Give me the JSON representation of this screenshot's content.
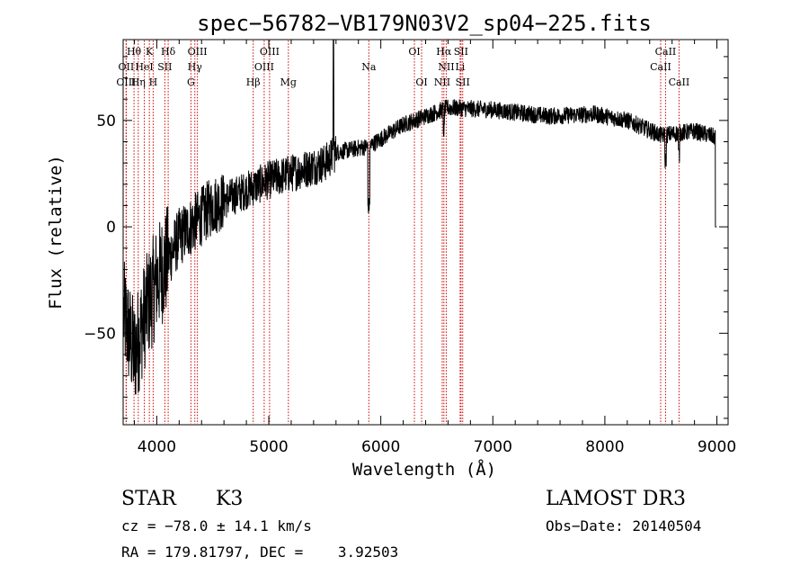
{
  "chart_data": {
    "type": "line",
    "title": "spec−56782−VB179N03V2_sp04−225.fits",
    "xlabel": "Wavelength (Å)",
    "ylabel": "Flux (relative)",
    "xlim": [
      3700,
      9100
    ],
    "ylim": [
      -93,
      88
    ],
    "xticks": [
      4000,
      5000,
      6000,
      7000,
      8000,
      9000
    ],
    "yticks": [
      -50,
      0,
      50
    ],
    "x_tick_labels": [
      "4000",
      "5000",
      "6000",
      "7000",
      "8000",
      "9000"
    ],
    "y_tick_labels": [
      "−50",
      "0",
      "50"
    ],
    "line_color": "#000000",
    "marker_color": "#cc0000",
    "spectrum_envelope": {
      "x": [
        3700,
        3800,
        3900,
        4000,
        4200,
        4500,
        5000,
        5500,
        5600,
        5900,
        6200,
        6600,
        7000,
        7500,
        7900,
        8200,
        8500,
        8800,
        9000
      ],
      "y": [
        -40,
        -60,
        -40,
        -25,
        -5,
        10,
        22,
        30,
        35,
        38,
        48,
        56,
        55,
        52,
        53,
        50,
        43,
        45,
        42
      ]
    },
    "spectral_lines": [
      {
        "label": "Hθ",
        "wavelength": 3797,
        "row": 0
      },
      {
        "label": "K",
        "wavelength": 3934,
        "row": 0
      },
      {
        "label": "Hδ",
        "wavelength": 4102,
        "row": 0
      },
      {
        "label": "OIII",
        "wavelength": 4363,
        "row": 0
      },
      {
        "label": "OIII",
        "wavelength": 5007,
        "row": 0
      },
      {
        "label": "OI",
        "wavelength": 6300,
        "row": 0
      },
      {
        "label": "Hα",
        "wavelength": 6563,
        "row": 0
      },
      {
        "label": "SII",
        "wavelength": 6716,
        "row": 0
      },
      {
        "label": "CaII",
        "wavelength": 8542,
        "row": 0
      },
      {
        "label": "OII",
        "wavelength": 3727,
        "row": 1
      },
      {
        "label": "HeI",
        "wavelength": 3889,
        "row": 1
      },
      {
        "label": "SII",
        "wavelength": 4072,
        "row": 1
      },
      {
        "label": "Hγ",
        "wavelength": 4340,
        "row": 1
      },
      {
        "label": "OIII",
        "wavelength": 4959,
        "row": 1
      },
      {
        "label": "Na",
        "wavelength": 5893,
        "row": 1
      },
      {
        "label": "NII",
        "wavelength": 6584,
        "row": 1
      },
      {
        "label": "Li",
        "wavelength": 6708,
        "row": 1
      },
      {
        "label": "CaII",
        "wavelength": 8498,
        "row": 1
      },
      {
        "label": "OIII",
        "wavelength": 3727,
        "row": 2
      },
      {
        "label": "Hη",
        "wavelength": 3835,
        "row": 2
      },
      {
        "label": "H",
        "wavelength": 3968,
        "row": 2
      },
      {
        "label": "G",
        "wavelength": 4305,
        "row": 2
      },
      {
        "label": "Hβ",
        "wavelength": 4861,
        "row": 2
      },
      {
        "label": "Mg",
        "wavelength": 5175,
        "row": 2
      },
      {
        "label": "OI",
        "wavelength": 6364,
        "row": 2
      },
      {
        "label": "NII",
        "wavelength": 6548,
        "row": 2
      },
      {
        "label": "SII",
        "wavelength": 6731,
        "row": 2
      },
      {
        "label": "CaII",
        "wavelength": 8662,
        "row": 2
      }
    ]
  },
  "info": {
    "object_type": "STAR",
    "subclass": "K3",
    "survey": "LAMOST DR3",
    "redshift": "cz = −78.0 ± 14.1 km/s",
    "obs_date": "Obs−Date: 20140504",
    "coords": "RA = 179.81797, DEC =    3.92503"
  }
}
